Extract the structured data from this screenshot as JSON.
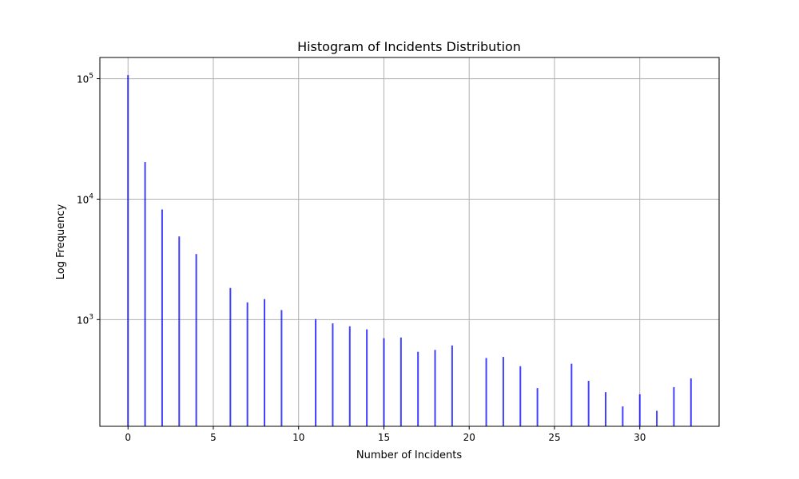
{
  "chart_data": {
    "type": "bar",
    "title": "Histogram of Incidents Distribution",
    "xlabel": "Number of Incidents",
    "ylabel": "Log Frequency",
    "xlim": [
      -1.65,
      34.65
    ],
    "ylim": [
      130,
      150000
    ],
    "y_scale": "log",
    "grid": true,
    "bar_color": "#0000ff",
    "x_ticks": [
      0,
      5,
      10,
      15,
      20,
      25,
      30
    ],
    "y_ticks": [
      {
        "value": 1000,
        "base": "10",
        "exp": "3"
      },
      {
        "value": 10000,
        "base": "10",
        "exp": "4"
      },
      {
        "value": 100000,
        "base": "10",
        "exp": "5"
      }
    ],
    "x": [
      0,
      1,
      2,
      3,
      4,
      6,
      7,
      8,
      9,
      11,
      12,
      13,
      14,
      15,
      16,
      17,
      18,
      19,
      21,
      22,
      23,
      24,
      26,
      27,
      28,
      29,
      30,
      31,
      32,
      33
    ],
    "values": [
      107000,
      20300,
      8200,
      4900,
      3500,
      1830,
      1390,
      1480,
      1200,
      1010,
      930,
      880,
      830,
      700,
      710,
      540,
      560,
      610,
      480,
      490,
      410,
      270,
      430,
      310,
      250,
      190,
      240,
      175,
      275,
      325
    ]
  }
}
